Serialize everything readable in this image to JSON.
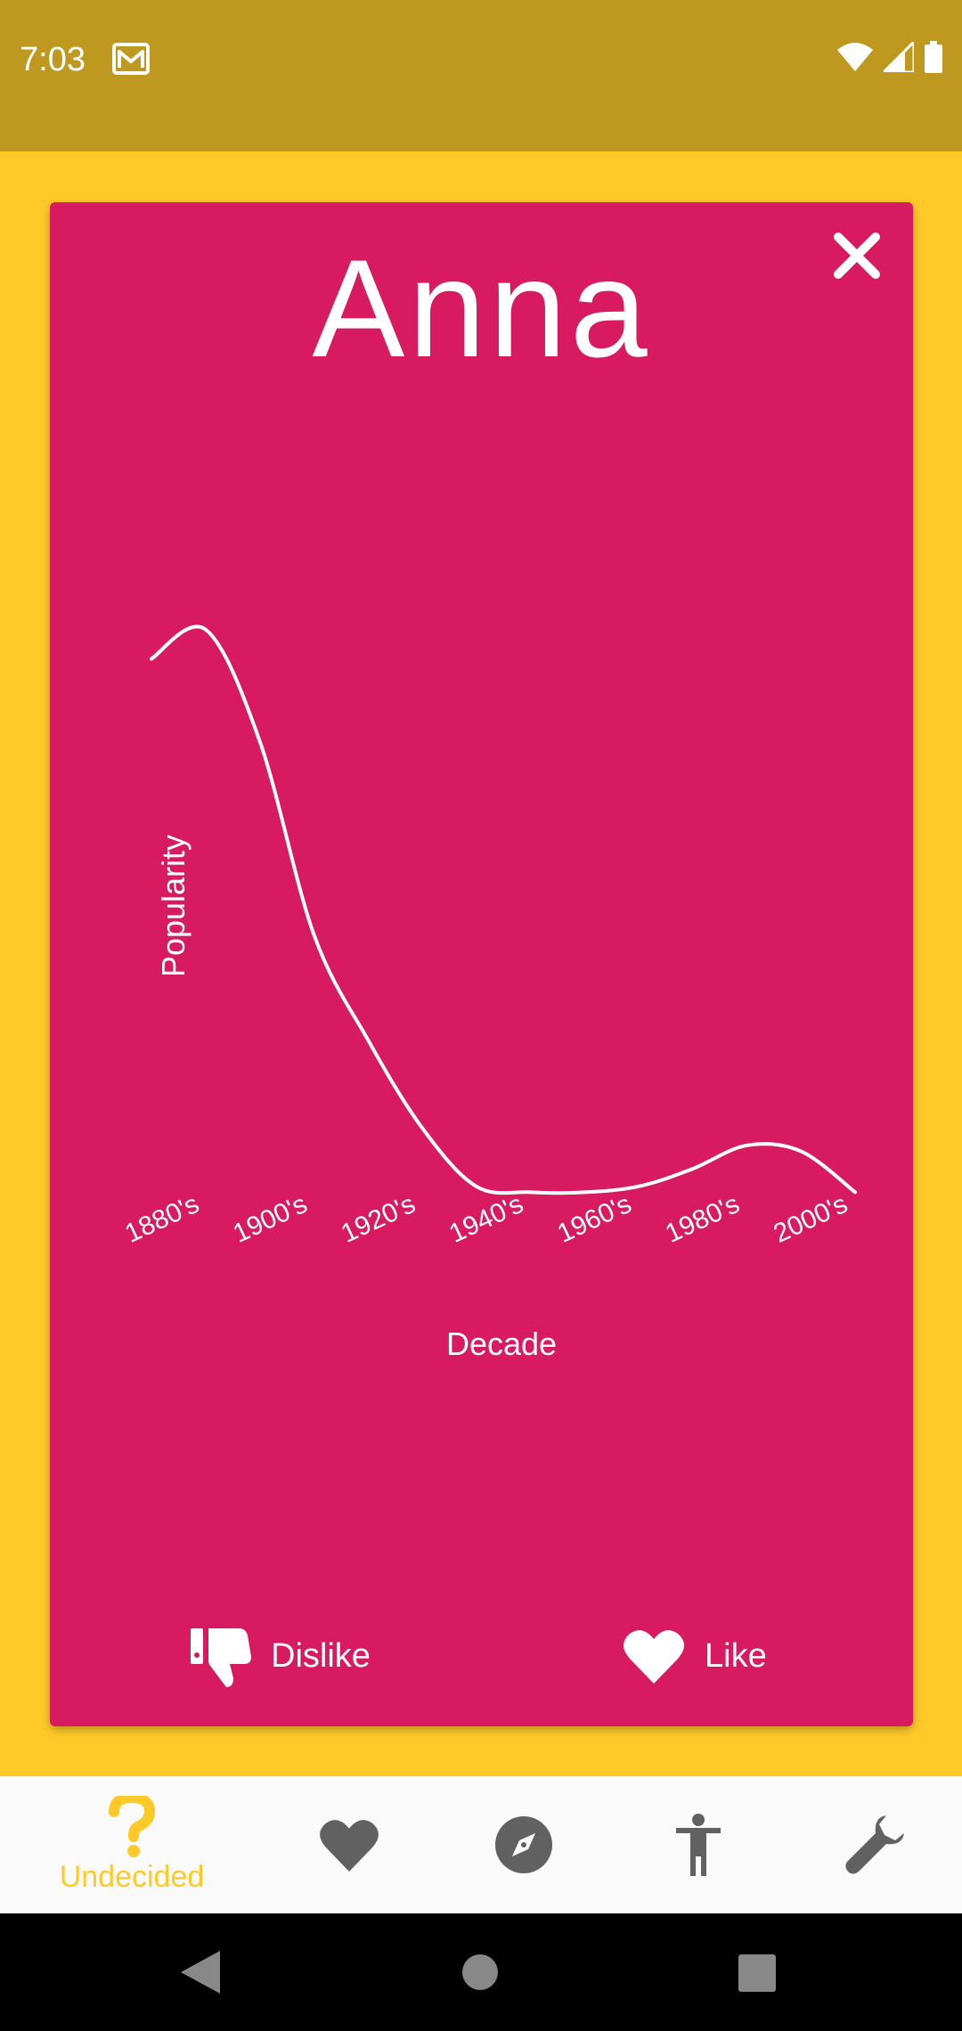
{
  "status_bar": {
    "time": "7:03",
    "icons": [
      "gmail-icon",
      "wifi-icon",
      "signal-icon",
      "battery-icon"
    ]
  },
  "card": {
    "name": "Anna",
    "background_color": "#D81B60",
    "close_icon": "close-icon"
  },
  "chart_data": {
    "type": "line",
    "title": "",
    "xlabel": "Decade",
    "ylabel": "Popularity",
    "categories": [
      "1880's",
      "1900's",
      "1920's",
      "1940's",
      "1960's",
      "1980's",
      "2000's"
    ],
    "x": [
      1880,
      1890,
      1900,
      1910,
      1920,
      1930,
      1940,
      1950,
      1960,
      1970,
      1980,
      1990,
      2000,
      2010
    ],
    "values": [
      92,
      97,
      78,
      45,
      27,
      12,
      2,
      1,
      1,
      2,
      5,
      9,
      8,
      1
    ],
    "ylim": [
      0,
      100
    ],
    "grid": false,
    "legend": "none",
    "line_color": "#FFFFFF"
  },
  "actions": {
    "dislike_label": "Dislike",
    "like_label": "Like"
  },
  "bottom_nav": {
    "items": [
      {
        "name": "undecided",
        "label": "Undecided",
        "icon": "question-icon",
        "active": true
      },
      {
        "name": "liked",
        "label": "",
        "icon": "heart-icon",
        "active": false
      },
      {
        "name": "explore",
        "label": "",
        "icon": "compass-icon",
        "active": false
      },
      {
        "name": "person",
        "label": "",
        "icon": "person-icon",
        "active": false
      },
      {
        "name": "settings",
        "label": "",
        "icon": "wrench-icon",
        "active": false
      }
    ],
    "active_color": "#FFCA28",
    "inactive_color": "#616161"
  },
  "theme": {
    "background": "#FFCA28",
    "status_bar": "#BF9820"
  }
}
